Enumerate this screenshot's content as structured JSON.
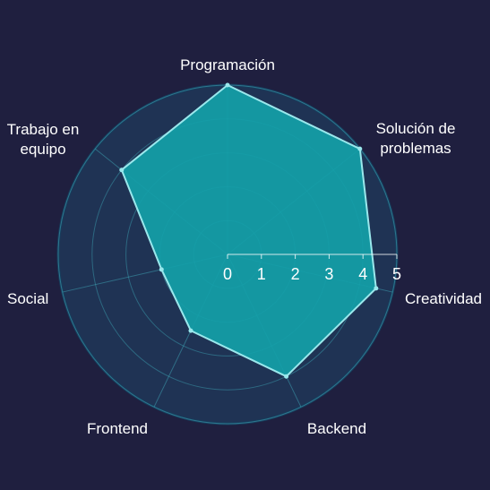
{
  "chart_data": {
    "type": "radar",
    "title": "",
    "categories": [
      "Programación",
      "Solución de problemas",
      "Creatividad",
      "Backend",
      "Frontend",
      "Social",
      "Trabajo en equipo"
    ],
    "display_labels": [
      [
        "Programación"
      ],
      [
        "Solución de",
        "problemas"
      ],
      [
        "Creatividad"
      ],
      [
        "Backend"
      ],
      [
        "Frontend"
      ],
      [
        "Social"
      ],
      [
        "Trabajo en",
        "equipo"
      ]
    ],
    "series": [
      {
        "values": [
          5,
          5,
          4.5,
          4,
          2.5,
          2,
          4
        ]
      }
    ],
    "rlim": [
      0,
      5
    ],
    "ticks": [
      0,
      1,
      2,
      3,
      4,
      5
    ],
    "grid": true,
    "colors": {
      "background": "#1f1f3f",
      "disc": "#1f3354",
      "disc_edge": "#173c5c",
      "grid": "#3fa8b8",
      "fill": "#14a0a8",
      "line": "#9ae8ec",
      "text": "#ffffff"
    }
  }
}
